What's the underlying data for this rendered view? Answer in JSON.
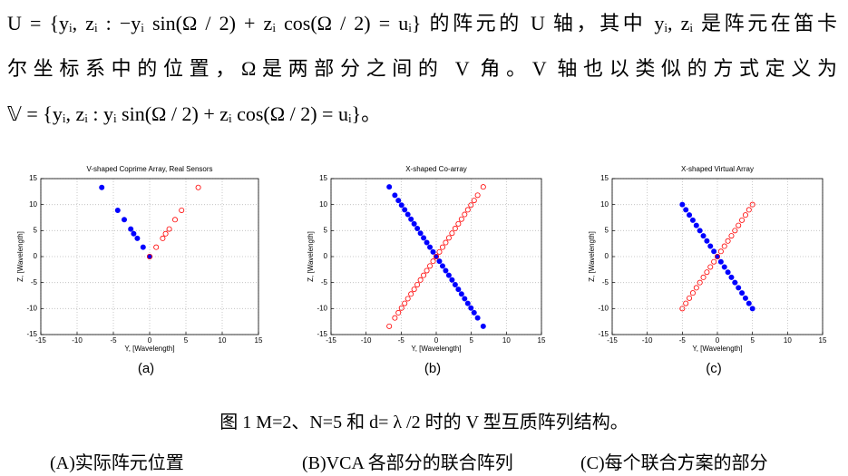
{
  "paragraph": {
    "lines": [
      "U = {yᵢ, zᵢ : −yᵢ sin(Ω / 2) + zᵢ cos(Ω / 2) = uᵢ} 的阵元的 U 轴，其中 yᵢ, zᵢ 是阵元在笛卡",
      "尔坐标系中的位置，Ω是两部分之间的 V 角。V 轴也以类似的方式定义为",
      "𝕍 = {yᵢ, zᵢ : yᵢ sin(Ω / 2) + zᵢ cos(Ω / 2) = uᵢ}。"
    ]
  },
  "chart_data": [
    {
      "type": "scatter",
      "title": "V-shaped Coprime Array, Real Sensors",
      "label": "(a)",
      "xlabel": "Y, [Wavelength]",
      "ylabel": "Z, [Wavelength]",
      "xlim": [
        -15,
        15
      ],
      "ylim": [
        -15,
        15
      ],
      "xticks": [
        -15,
        -10,
        -5,
        0,
        5,
        10,
        15
      ],
      "yticks": [
        -15,
        -10,
        -5,
        0,
        5,
        10,
        15
      ],
      "grid": true,
      "series": [
        {
          "color": "#0000ff",
          "filled": true,
          "x": [
            -6.6,
            -4.4,
            -3.5,
            -2.6,
            -2.2,
            -1.7,
            -0.9,
            0
          ],
          "y": [
            13.3,
            8.9,
            7.1,
            5.3,
            4.4,
            3.5,
            1.8,
            0
          ]
        },
        {
          "color": "#ff0000",
          "filled": false,
          "x": [
            6.7,
            4.4,
            3.5,
            2.7,
            2.2,
            1.8,
            0.9,
            0
          ],
          "y": [
            13.3,
            8.9,
            7.1,
            5.3,
            4.4,
            3.5,
            1.8,
            0
          ]
        }
      ]
    },
    {
      "type": "scatter",
      "title": "X-shaped Co-array",
      "label": "(b)",
      "xlabel": "Y, [Wavelength]",
      "ylabel": "Z, [Wavelength]",
      "xlim": [
        -15,
        15
      ],
      "ylim": [
        -15,
        15
      ],
      "xticks": [
        -15,
        -10,
        -5,
        0,
        5,
        10,
        15
      ],
      "yticks": [
        -15,
        -10,
        -5,
        0,
        5,
        10,
        15
      ],
      "grid": true,
      "series": [
        {
          "color": "#0000ff",
          "filled": true,
          "x": [
            -6.7,
            -5.9,
            -5.4,
            -4.95,
            -4.5,
            -4.05,
            -3.6,
            -3.15,
            -2.7,
            -2.25,
            -1.8,
            -1.35,
            -0.9,
            -0.45,
            0,
            0.45,
            0.9,
            1.35,
            1.8,
            2.25,
            2.7,
            3.15,
            3.6,
            4.05,
            4.5,
            4.95,
            5.4,
            5.9,
            6.7
          ],
          "y": [
            13.4,
            11.8,
            10.8,
            9.9,
            9,
            8.1,
            7.2,
            6.3,
            5.4,
            4.5,
            3.6,
            2.7,
            1.8,
            0.9,
            0,
            -0.9,
            -1.8,
            -2.7,
            -3.6,
            -4.5,
            -5.4,
            -6.3,
            -7.2,
            -8.1,
            -9,
            -9.9,
            -10.8,
            -11.8,
            -13.4
          ]
        },
        {
          "color": "#ff0000",
          "filled": false,
          "x": [
            -6.7,
            -5.9,
            -5.4,
            -4.95,
            -4.5,
            -4.05,
            -3.6,
            -3.15,
            -2.7,
            -2.25,
            -1.8,
            -1.35,
            -0.9,
            -0.45,
            0,
            0.45,
            0.9,
            1.35,
            1.8,
            2.25,
            2.7,
            3.15,
            3.6,
            4.05,
            4.5,
            4.95,
            5.4,
            5.9,
            6.7
          ],
          "y": [
            -13.4,
            -11.8,
            -10.8,
            -9.9,
            -9,
            -8.1,
            -7.2,
            -6.3,
            -5.4,
            -4.5,
            -3.6,
            -2.7,
            -1.8,
            -0.9,
            0,
            0.9,
            1.8,
            2.7,
            3.6,
            4.5,
            5.4,
            6.3,
            7.2,
            8.1,
            9,
            9.9,
            10.8,
            11.8,
            13.4
          ]
        }
      ]
    },
    {
      "type": "scatter",
      "title": "X-shaped Virtual Array",
      "label": "(c)",
      "xlabel": "Y, [Wavelength]",
      "ylabel": "Z, [Wavelength]",
      "xlim": [
        -15,
        15
      ],
      "ylim": [
        -15,
        15
      ],
      "xticks": [
        -15,
        -10,
        -5,
        0,
        5,
        10,
        15
      ],
      "yticks": [
        -15,
        -10,
        -5,
        0,
        5,
        10,
        15
      ],
      "grid": true,
      "series": [
        {
          "color": "#0000ff",
          "filled": true,
          "x": [
            -5,
            -4.5,
            -4,
            -3.5,
            -3,
            -2.5,
            -2,
            -1.5,
            -1,
            -0.5,
            0,
            0.5,
            1,
            1.5,
            2,
            2.5,
            3,
            3.5,
            4,
            4.5,
            5
          ],
          "y": [
            10,
            9,
            8,
            7,
            6,
            5,
            4,
            3,
            2,
            1,
            0,
            -1,
            -2,
            -3,
            -4,
            -5,
            -6,
            -7,
            -8,
            -9,
            -10
          ]
        },
        {
          "color": "#ff0000",
          "filled": false,
          "x": [
            -5,
            -4.5,
            -4,
            -3.5,
            -3,
            -2.5,
            -2,
            -1.5,
            -1,
            -0.5,
            0,
            0.5,
            1,
            1.5,
            2,
            2.5,
            3,
            3.5,
            4,
            4.5,
            5
          ],
          "y": [
            -10,
            -9,
            -8,
            -7,
            -6,
            -5,
            -4,
            -3,
            -2,
            -1,
            0,
            1,
            2,
            3,
            4,
            5,
            6,
            7,
            8,
            9,
            10
          ]
        }
      ]
    }
  ],
  "caption": "图 1 M=2、N=5 和 d= λ /2 时的 V 型互质阵列结构。",
  "subcaptions": [
    "(A)实际阵元位置",
    "(B)VCA 各部分的联合阵列",
    "(C)每个联合方案的部分"
  ]
}
